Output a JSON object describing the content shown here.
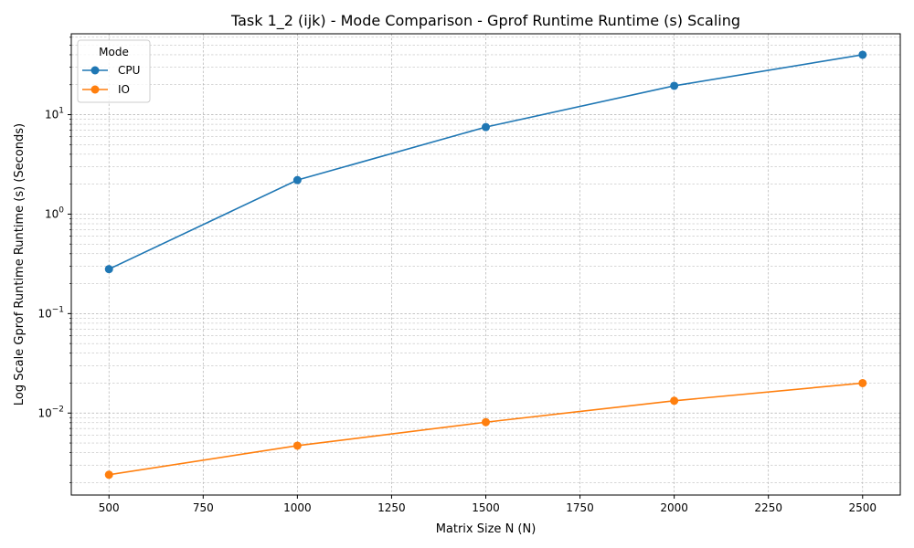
{
  "chart_data": {
    "type": "line",
    "title": "Task 1_2 (ijk) - Mode Comparison - Gprof Runtime Runtime (s) Scaling",
    "xlabel": "Matrix Size N (N)",
    "ylabel": "Log Scale Gprof Runtime Runtime (s) (Seconds)",
    "yscale": "log",
    "xlim": [
      400,
      2600
    ],
    "ylim": [
      0.0015,
      65
    ],
    "x_ticks": [
      500,
      750,
      1000,
      1250,
      1500,
      1750,
      2000,
      2250,
      2500
    ],
    "y_ticks": [
      {
        "value": 0.01,
        "base": "10",
        "exp": "−2"
      },
      {
        "value": 0.1,
        "base": "10",
        "exp": "−1"
      },
      {
        "value": 1,
        "base": "10",
        "exp": "0"
      },
      {
        "value": 10,
        "base": "10",
        "exp": "1"
      }
    ],
    "grid": true,
    "legend": {
      "title": "Mode",
      "position": "top-left"
    },
    "series": [
      {
        "name": "CPU",
        "color": "#1f77b4",
        "x": [
          500,
          1000,
          1500,
          2000,
          2500
        ],
        "y": [
          0.28,
          2.2,
          7.5,
          19.5,
          40
        ]
      },
      {
        "name": "IO",
        "color": "#ff7f0e",
        "x": [
          500,
          1000,
          1500,
          2000,
          2500
        ],
        "y": [
          0.0024,
          0.0047,
          0.0081,
          0.0133,
          0.02
        ]
      }
    ]
  }
}
